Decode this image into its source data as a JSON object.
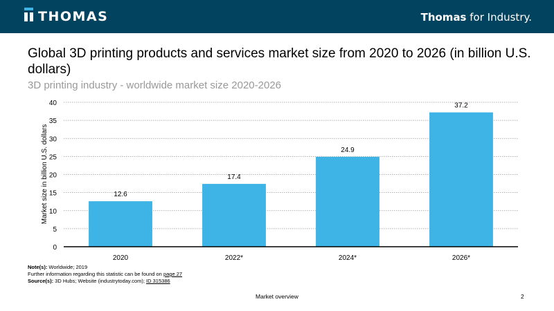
{
  "header": {
    "logo_text": "THOMAS",
    "tagline_bold": "Thomas",
    "tagline_rest": " for Industry."
  },
  "title": "Global 3D printing products and services market size from 2020 to 2026 (in billion U.S. dollars)",
  "subtitle": "3D printing industry - worldwide market size 2020-2026",
  "chart_data": {
    "type": "bar",
    "categories": [
      "2020",
      "2022*",
      "2024*",
      "2026*"
    ],
    "values": [
      12.6,
      17.4,
      24.9,
      37.2
    ],
    "value_labels": [
      "12.6",
      "17.4",
      "24.9",
      "37.2"
    ],
    "ylabel": "Market size in billion U.S. dollars",
    "xlabel": "",
    "ylim": [
      0,
      40
    ],
    "yticks": [
      "0",
      "5",
      "10",
      "15",
      "20",
      "25",
      "30",
      "35",
      "40"
    ],
    "grid": true,
    "bar_color": "#3db4e5"
  },
  "notes": {
    "note_label": "Note(s):",
    "note_text": " Worldwide; 2019",
    "further_text": "Further information regarding this statistic can be found on ",
    "further_link": "page 27",
    "source_label": "Source(s):",
    "source_text": " 3D Hubs; Website (industrytoday.com); ",
    "source_link": "ID 315386"
  },
  "footer": {
    "section": "Market overview",
    "page": "2"
  }
}
